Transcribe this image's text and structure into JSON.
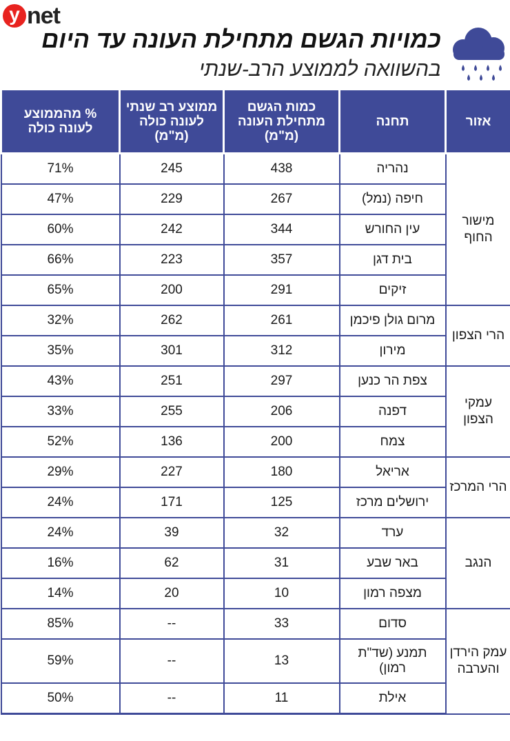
{
  "brand": {
    "logo_letter": "y",
    "logo_rest": "net"
  },
  "header": {
    "title": "כמויות הגשם מתחילת העונה עד היום",
    "subtitle": "בהשוואה לממוצע הרב-שנתי",
    "icon": "rain-cloud-icon",
    "accent_color": "#3f4a98"
  },
  "table": {
    "columns": [
      "אזור",
      "תחנה",
      "כמות הגשם מתחילת העונה (מ\"מ)",
      "ממוצע רב שנתי לעונה כולה (מ\"מ)",
      "% מהממוצע לעונה כולה"
    ],
    "groups": [
      {
        "region": "מישור החוף",
        "rows": [
          {
            "station": "נהריה",
            "amount": "438",
            "avg": "245",
            "pct": "71%"
          },
          {
            "station": "חיפה (נמל)",
            "amount": "267",
            "avg": "229",
            "pct": "47%"
          },
          {
            "station": "עין החורש",
            "amount": "344",
            "avg": "242",
            "pct": "60%"
          },
          {
            "station": "בית דגן",
            "amount": "357",
            "avg": "223",
            "pct": "66%"
          },
          {
            "station": "זיקים",
            "amount": "291",
            "avg": "200",
            "pct": "65%"
          }
        ]
      },
      {
        "region": "הרי הצפון",
        "rows": [
          {
            "station": "מרום גולן פיכמן",
            "amount": "261",
            "avg": "262",
            "pct": "32%"
          },
          {
            "station": "מירון",
            "amount": "312",
            "avg": "301",
            "pct": "35%"
          }
        ]
      },
      {
        "region": "עמקי הצפון",
        "rows": [
          {
            "station": "צפת הר כנען",
            "amount": "297",
            "avg": "251",
            "pct": "43%"
          },
          {
            "station": "דפנה",
            "amount": "206",
            "avg": "255",
            "pct": "33%"
          },
          {
            "station": "צמח",
            "amount": "200",
            "avg": "136",
            "pct": "52%"
          }
        ]
      },
      {
        "region": "הרי המרכז",
        "rows": [
          {
            "station": "אריאל",
            "amount": "180",
            "avg": "227",
            "pct": "29%"
          },
          {
            "station": "ירושלים מרכז",
            "amount": "125",
            "avg": "171",
            "pct": "24%"
          }
        ]
      },
      {
        "region": "הנגב",
        "rows": [
          {
            "station": "ערד",
            "amount": "32",
            "avg": "39",
            "pct": "24%"
          },
          {
            "station": "באר שבע",
            "amount": "31",
            "avg": "62",
            "pct": "16%"
          },
          {
            "station": "מצפה רמון",
            "amount": "10",
            "avg": "20",
            "pct": "14%"
          }
        ]
      },
      {
        "region": "עמק הירדן והערבה",
        "rows": [
          {
            "station": "סדום",
            "amount": "33",
            "avg": "--",
            "pct": "85%"
          },
          {
            "station": "תמנע (שד\"ת רמון)",
            "amount": "13",
            "avg": "--",
            "pct": "59%"
          },
          {
            "station": "אילת",
            "amount": "11",
            "avg": "--",
            "pct": "50%"
          }
        ]
      }
    ]
  }
}
